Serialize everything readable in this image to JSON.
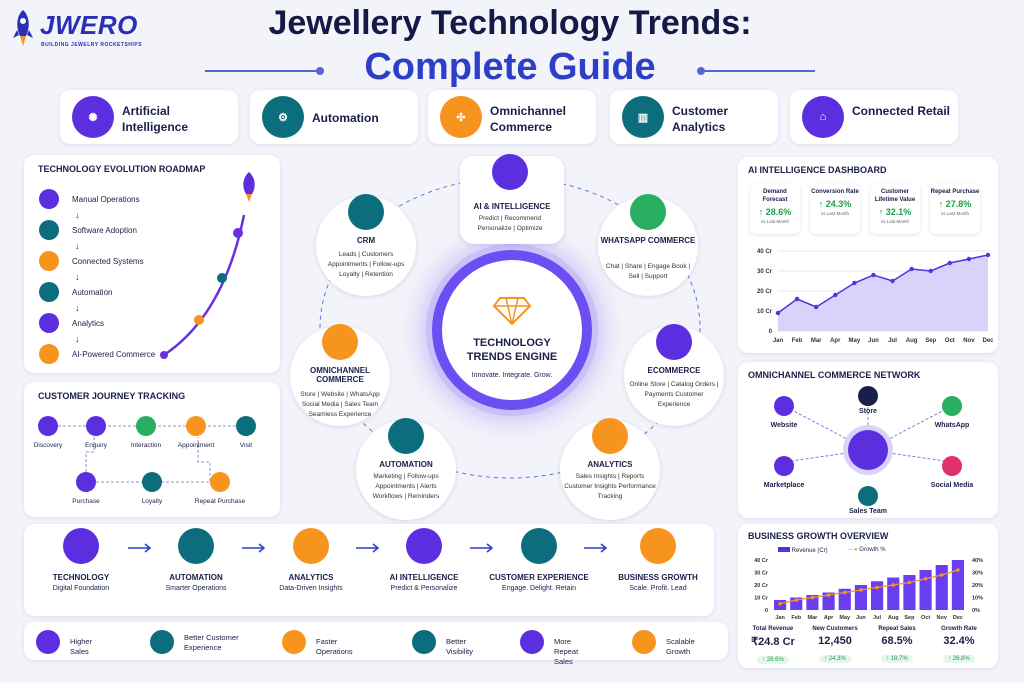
{
  "brand": {
    "name": "JWERO",
    "tagline": "BUILDING JEWELRY ROCKETSHIPS"
  },
  "header": {
    "title": "Jewellery Technology Trends:",
    "subtitle": "Complete Guide"
  },
  "pills": [
    {
      "label": "Artificial Intelligence",
      "icon": "brain-icon",
      "color": "#5b2ee0"
    },
    {
      "label": "Automation",
      "icon": "gear-icon",
      "color": "#0c6e7c"
    },
    {
      "label": "Omnichannel Commerce",
      "icon": "network-icon",
      "color": "#f7941d"
    },
    {
      "label": "Customer Analytics",
      "icon": "chart-icon",
      "color": "#0c6e7c"
    },
    {
      "label": "Connected Retail",
      "icon": "store-icon",
      "color": "#5b2ee0"
    }
  ],
  "roadmap": {
    "title": "TECHNOLOGY EVOLUTION ROADMAP",
    "steps": [
      "Manual Operations",
      "Software Adoption",
      "Connected Systems",
      "Automation",
      "Analytics",
      "AI-Powered Commerce"
    ]
  },
  "journey": {
    "title": "CUSTOMER JOURNEY TRACKING",
    "steps": [
      "Discovery",
      "Enquiry",
      "Interaction",
      "Appointment",
      "Visit",
      "Purchase",
      "Loyalty",
      "Repeat Purchase"
    ]
  },
  "engine": {
    "title": "TECHNOLOGY TRENDS ENGINE",
    "tagline": "Innovate. Integrate. Grow.",
    "nodes": [
      {
        "title": "AI & INTELLIGENCE",
        "desc": "Predict | Recommend Personalize | Optimize"
      },
      {
        "title": "CRM",
        "desc": "Leads | Customers Appointments | Follow-ups Loyalty | Retention"
      },
      {
        "title": "WHATSAPP COMMERCE",
        "desc": "Chat | Share | Engage Book | Sell | Support"
      },
      {
        "title": "OMNICHANNEL COMMERCE",
        "desc": "Store | Website | WhatsApp Social Media | Sales Team Seamless Experience"
      },
      {
        "title": "ECOMMERCE",
        "desc": "Online Store | Catalog Orders | Payments Customer Experience"
      },
      {
        "title": "AUTOMATION",
        "desc": "Marketing | Follow-ups Appointments | Alerts Workflows | Reminders"
      },
      {
        "title": "ANALYTICS",
        "desc": "Sales Insights | Reports Customer Insights Performance Tracking"
      }
    ]
  },
  "dashboard": {
    "title": "AI INTELLIGENCE DASHBOARD",
    "kpis": [
      {
        "label": "Demand Forecast",
        "value": "↑ 28.6%",
        "sub": "vs Last Month"
      },
      {
        "label": "Conversion Rate",
        "value": "↑ 24.3%",
        "sub": "vs Last Month"
      },
      {
        "label": "Customer Lifetime Value",
        "value": "↑ 32.1%",
        "sub": "vs Last Month"
      },
      {
        "label": "Repeat Purchase",
        "value": "↑ 27.8%",
        "sub": "vs Last Month"
      }
    ]
  },
  "chart_data": [
    {
      "type": "area",
      "categories": [
        "Jan",
        "Feb",
        "Mar",
        "Apr",
        "May",
        "Jun",
        "Jul",
        "Aug",
        "Sep",
        "Oct",
        "Nov",
        "Dec"
      ],
      "values": [
        9,
        16,
        12,
        18,
        24,
        28,
        25,
        31,
        30,
        34,
        36,
        38
      ],
      "yticks": [
        "0",
        "10 Cr",
        "20 Cr",
        "30 Cr",
        "40 Cr"
      ],
      "ylim": [
        0,
        40
      ]
    },
    {
      "type": "bar",
      "title": "BUSINESS GROWTH OVERVIEW",
      "categories": [
        "Jan",
        "Feb",
        "Mar",
        "Apr",
        "May",
        "Jun",
        "Jul",
        "Aug",
        "Sep",
        "Oct",
        "Nov",
        "Dec"
      ],
      "series": [
        {
          "name": "Revenue (Cr)",
          "values": [
            8,
            10,
            12,
            14,
            17,
            20,
            23,
            26,
            28,
            32,
            36,
            40
          ]
        },
        {
          "name": "Growth %",
          "values": [
            5,
            8,
            10,
            12,
            14,
            16,
            18,
            20,
            22,
            25,
            28,
            32
          ]
        }
      ],
      "yticks": [
        "0",
        "10 Cr",
        "20 Cr",
        "30 Cr",
        "40 Cr"
      ],
      "y2ticks": [
        "0%",
        "10%",
        "20%",
        "30%",
        "40%"
      ],
      "ylim": [
        0,
        40
      ]
    }
  ],
  "network": {
    "title": "OMNICHANNEL COMMERCE NETWORK",
    "nodes": [
      "Website",
      "Store",
      "WhatsApp",
      "Marketplace",
      "Sales Team",
      "Social Media"
    ]
  },
  "flow": [
    {
      "title": "TECHNOLOGY",
      "desc": "Digital Foundation"
    },
    {
      "title": "AUTOMATION",
      "desc": "Smarter Operations"
    },
    {
      "title": "ANALYTICS",
      "desc": "Data-Driven Insights"
    },
    {
      "title": "AI INTELLIGENCE",
      "desc": "Predict & Personalize"
    },
    {
      "title": "CUSTOMER EXPERIENCE",
      "desc": "Engage. Delight. Retain"
    },
    {
      "title": "BUSINESS GROWTH",
      "desc": "Scale. Profit. Lead"
    }
  ],
  "benefits": [
    "Higher Sales",
    "Better Customer Experience",
    "Faster Operations",
    "Better Visibility",
    "More Repeat Sales",
    "Scalable Growth"
  ],
  "growth_stats": [
    {
      "label": "Total Revenue",
      "value": "₹24.8 Cr",
      "delta": "↑ 28.6%"
    },
    {
      "label": "New Customers",
      "value": "12,450",
      "delta": "↑ 24.3%"
    },
    {
      "label": "Repeat Sales",
      "value": "68.5%",
      "delta": "↑ 18.7%"
    },
    {
      "label": "Growth Rate",
      "value": "32.4%",
      "delta": "↑ 26.8%"
    }
  ]
}
